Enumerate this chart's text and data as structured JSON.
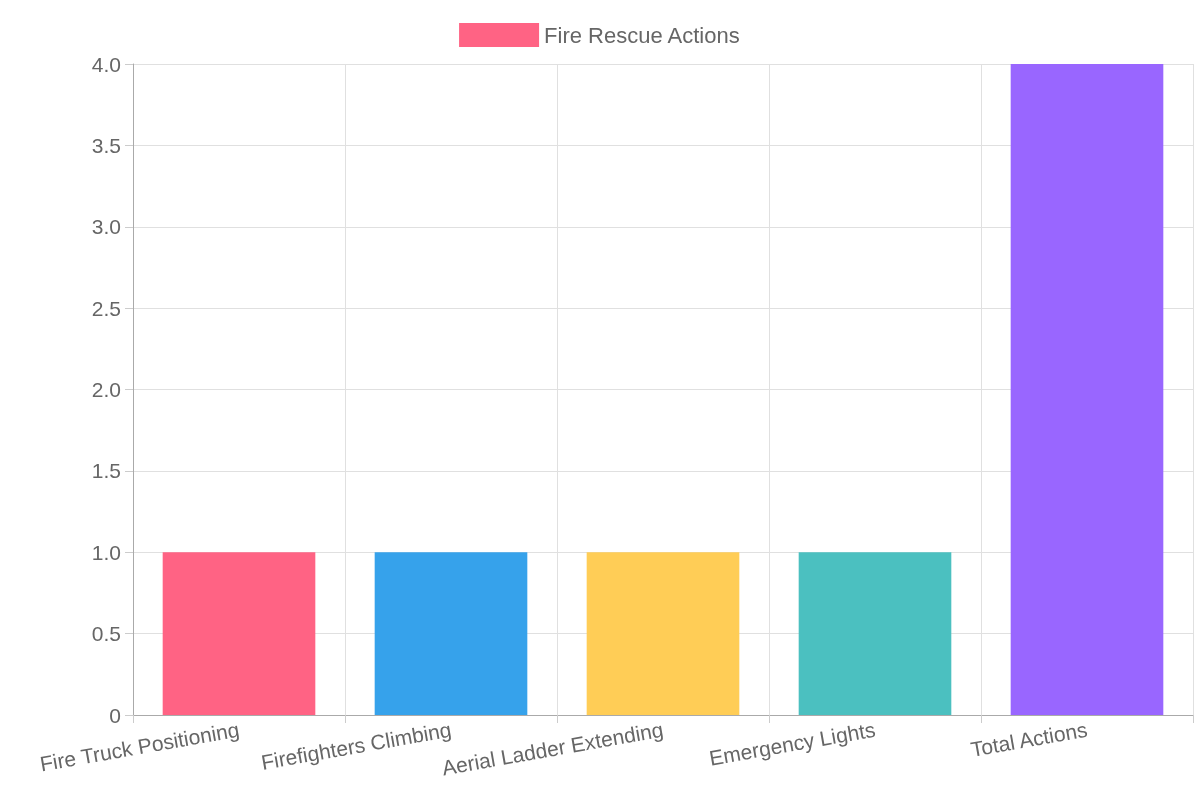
{
  "chart_data": {
    "type": "bar",
    "categories": [
      "Fire Truck Positioning",
      "Firefighters Climbing",
      "Aerial Ladder Extending",
      "Emergency Lights",
      "Total Actions"
    ],
    "series": [
      {
        "name": "Fire Rescue Actions",
        "color": "#ff6384",
        "values": [
          1,
          1,
          1,
          1,
          4
        ],
        "colors": [
          "#ff6384",
          "#36a2eb",
          "#ffcd56",
          "#4bc0c0",
          "#9966ff"
        ]
      }
    ],
    "ylim": [
      0,
      4
    ],
    "yticks": [
      0,
      {
        "value": 0.5,
        "label": "0.5"
      },
      {
        "value": 1,
        "label": "1.0"
      },
      {
        "value": 1.5,
        "label": "1.5"
      },
      {
        "value": 2,
        "label": "2.0"
      },
      {
        "value": 2.5,
        "label": "2.5"
      },
      {
        "value": 3,
        "label": "3.0"
      },
      {
        "value": 3.5,
        "label": "3.5"
      },
      {
        "value": 4,
        "label": "4.0"
      }
    ],
    "grid": true,
    "legend": "top"
  }
}
